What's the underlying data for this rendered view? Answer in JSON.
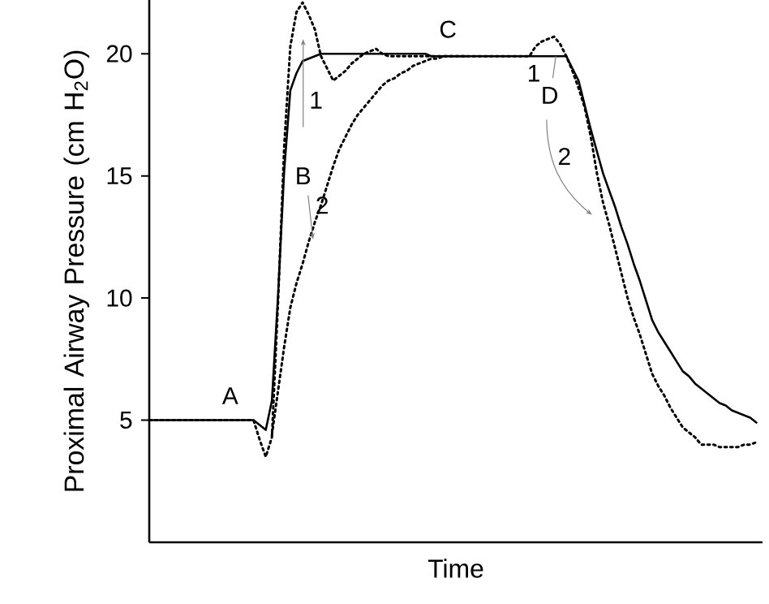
{
  "chart_data": {
    "type": "line",
    "xlabel": "Time",
    "ylabel": "Proximal Airway Pressure (cm H$_{2}$O)",
    "ylim": [
      0,
      22.2
    ],
    "yticks": [
      5,
      10,
      15,
      20
    ],
    "tick_labels": "y",
    "grid": false,
    "categories": [
      null,
      null,
      null,
      null,
      null,
      null,
      null,
      null,
      null,
      null,
      null,
      null,
      null,
      null,
      null,
      null,
      null,
      null,
      null,
      null,
      null,
      null,
      null,
      null,
      null,
      null,
      null,
      null,
      null,
      null,
      null,
      null,
      null,
      null,
      null,
      null,
      null,
      null,
      null,
      null,
      null,
      null,
      null,
      null,
      null,
      null,
      null,
      null,
      null,
      null,
      null,
      null,
      null,
      null,
      null,
      null,
      null,
      null,
      null,
      null,
      null,
      null,
      null,
      null,
      null,
      null,
      null,
      null,
      null,
      null,
      null,
      null,
      null,
      null,
      null,
      null,
      null,
      null,
      null,
      null,
      null,
      null,
      null,
      null,
      null,
      null,
      null,
      null,
      null,
      null,
      null,
      null,
      null,
      null,
      null,
      null,
      null,
      null,
      null,
      null
    ],
    "series": [
      {
        "color": "#000000",
        "line_style": "solid",
        "values": [
          5,
          5,
          5,
          5,
          5,
          5,
          5,
          5,
          5,
          5,
          5,
          5,
          5,
          5,
          5,
          5,
          5,
          5,
          4.8,
          4.6,
          5.8,
          10.1,
          15.2,
          18.5,
          19.2,
          19.7,
          19.8,
          19.9,
          20,
          20,
          20,
          20,
          20,
          20,
          20,
          20,
          20,
          20,
          20,
          20,
          20,
          20,
          20,
          20,
          20,
          20,
          19.9,
          19.9,
          19.9,
          19.9,
          19.9,
          19.9,
          19.9,
          19.9,
          19.9,
          19.9,
          19.9,
          19.9,
          19.9,
          19.9,
          19.9,
          19.9,
          19.9,
          19.9,
          19.9,
          19.9,
          19.9,
          19.9,
          19.9,
          19.4,
          18.9,
          17.9,
          16.9,
          16.0,
          15.1,
          14.4,
          13.7,
          12.9,
          12.2,
          11.4,
          10.7,
          9.9,
          9.1,
          8.6,
          8.2,
          7.8,
          7.4,
          7.0,
          6.8,
          6.5,
          6.3,
          6.1,
          5.9,
          5.7,
          5.6,
          5.4,
          5.3,
          5.2,
          5.1,
          4.9
        ]
      },
      {
        "color": "#000000",
        "line_style": "dotted",
        "values": [
          5,
          5,
          5,
          5,
          5,
          5,
          5,
          5,
          5,
          5,
          5,
          5,
          5,
          5,
          5,
          5,
          5,
          5,
          4.2,
          3.5,
          4.3,
          9.8,
          16.2,
          20.3,
          21.7,
          22.1,
          21.6,
          21.0,
          19.9,
          19.4,
          18.9,
          19.1,
          19.3,
          19.6,
          19.8,
          20.0,
          20.1,
          20.2,
          20.0,
          19.9,
          19.9,
          19.9,
          19.9,
          19.9,
          19.9,
          19.9,
          19.9,
          19.9,
          19.9,
          19.9,
          19.9,
          19.9,
          19.9,
          19.9,
          19.9,
          19.9,
          19.9,
          19.9,
          19.9,
          19.9,
          19.9,
          19.9,
          19.9,
          20.3,
          20.5,
          20.6,
          20.7,
          20.4,
          19.9,
          19.3,
          18.6,
          17.8,
          16.6,
          15.1,
          13.9,
          13.0,
          12.0,
          11.0,
          10.0,
          9.2,
          8.5,
          7.7,
          6.9,
          6.4,
          6.0,
          5.5,
          5.1,
          4.7,
          4.5,
          4.3,
          4.0,
          4.0,
          4.0,
          3.9,
          3.9,
          3.9,
          3.9,
          4.0,
          4.0,
          4.1
        ]
      },
      {
        "color": "#000000",
        "line_style": "dotted",
        "values": [
          null,
          null,
          null,
          null,
          null,
          null,
          null,
          null,
          null,
          null,
          null,
          null,
          null,
          null,
          null,
          null,
          null,
          null,
          null,
          null,
          4.4,
          6.2,
          8.0,
          9.6,
          10.6,
          11.4,
          12.3,
          13.1,
          13.8,
          14.6,
          15.4,
          16.1,
          16.6,
          17.1,
          17.5,
          17.8,
          18.1,
          18.4,
          18.7,
          18.9,
          19.0,
          19.2,
          19.3,
          19.5,
          19.6,
          19.7,
          19.8,
          19.8,
          19.9,
          19.9,
          19.9,
          19.9,
          19.9,
          null,
          null,
          null,
          null,
          null,
          null,
          null,
          null,
          null,
          null,
          null,
          null,
          null,
          null,
          null,
          null,
          null,
          null,
          null,
          null,
          null,
          null,
          null,
          null,
          null,
          null,
          null,
          null,
          null,
          null,
          null,
          null,
          null,
          null,
          null,
          null,
          null,
          null,
          null,
          null,
          null,
          null,
          null,
          null,
          null,
          null,
          null
        ]
      }
    ],
    "annotations": [
      "A",
      "B",
      "C",
      "D",
      "1",
      "2",
      "1",
      "2"
    ]
  }
}
